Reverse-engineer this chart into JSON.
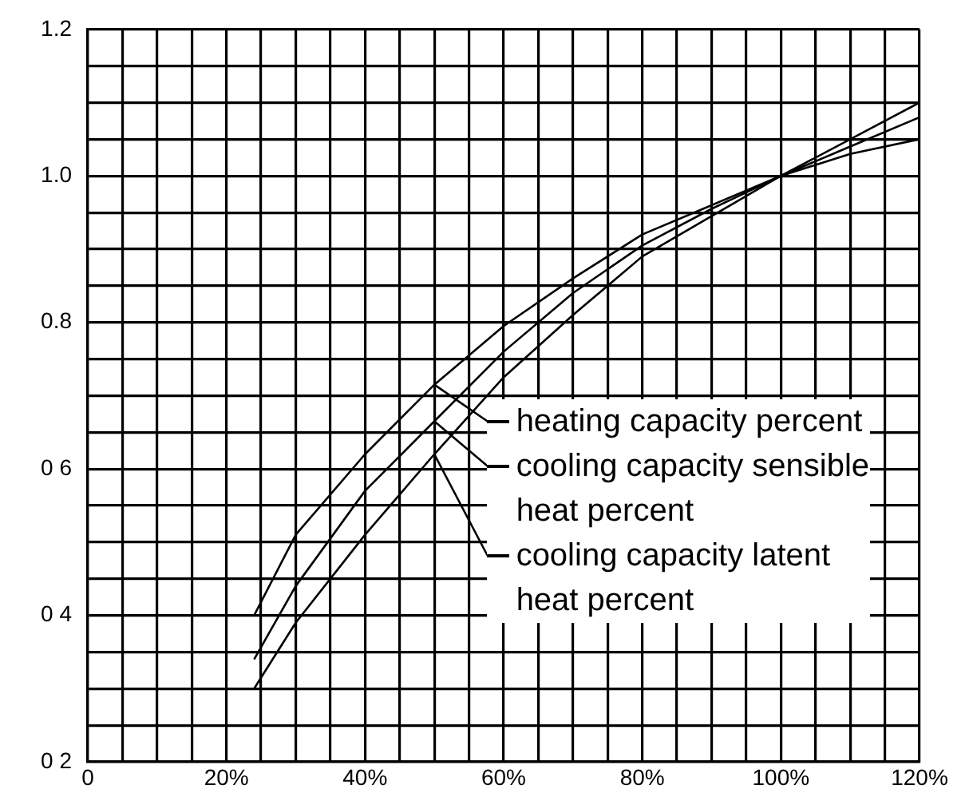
{
  "chart_data": {
    "type": "line",
    "x": [
      24,
      30,
      40,
      50,
      60,
      70,
      80,
      90,
      100,
      110,
      120
    ],
    "series": [
      {
        "name": "heating capacity percent",
        "color": "#000000",
        "values": [
          0.4,
          0.51,
          0.62,
          0.715,
          0.795,
          0.86,
          0.92,
          0.96,
          1.0,
          1.05,
          1.1
        ]
      },
      {
        "name": "cooling capacity sensible heat percent",
        "color": "#000000",
        "values": [
          0.34,
          0.44,
          0.57,
          0.665,
          0.76,
          0.84,
          0.905,
          0.955,
          1.0,
          1.04,
          1.08
        ]
      },
      {
        "name": "cooling capacity latent heat percent",
        "color": "#000000",
        "values": [
          0.3,
          0.39,
          0.51,
          0.62,
          0.725,
          0.81,
          0.89,
          0.945,
          1.0,
          1.03,
          1.05
        ]
      }
    ],
    "xlim": [
      0,
      120
    ],
    "xticks": [
      {
        "value": 0,
        "label": "0"
      },
      {
        "value": 5,
        "label": null
      },
      {
        "value": 10,
        "label": null
      },
      {
        "value": 15,
        "label": null
      },
      {
        "value": 20,
        "label": "20%"
      },
      {
        "value": 25,
        "label": null
      },
      {
        "value": 30,
        "label": null
      },
      {
        "value": 35,
        "label": null
      },
      {
        "value": 40,
        "label": "40%"
      },
      {
        "value": 45,
        "label": null
      },
      {
        "value": 50,
        "label": null
      },
      {
        "value": 55,
        "label": null
      },
      {
        "value": 60,
        "label": "60%"
      },
      {
        "value": 65,
        "label": null
      },
      {
        "value": 70,
        "label": null
      },
      {
        "value": 75,
        "label": null
      },
      {
        "value": 80,
        "label": "80%"
      },
      {
        "value": 85,
        "label": null
      },
      {
        "value": 90,
        "label": null
      },
      {
        "value": 95,
        "label": null
      },
      {
        "value": 100,
        "label": "100%"
      },
      {
        "value": 105,
        "label": null
      },
      {
        "value": 110,
        "label": null
      },
      {
        "value": 115,
        "label": null
      },
      {
        "value": 120,
        "label": "120%"
      }
    ],
    "ylim": [
      0.2,
      1.2
    ],
    "yticks": [
      {
        "value": 0.2,
        "label": "0 2"
      },
      {
        "value": 0.25,
        "label": null
      },
      {
        "value": 0.3,
        "label": null
      },
      {
        "value": 0.35,
        "label": null
      },
      {
        "value": 0.4,
        "label": "0 4"
      },
      {
        "value": 0.45,
        "label": null
      },
      {
        "value": 0.5,
        "label": null
      },
      {
        "value": 0.55,
        "label": null
      },
      {
        "value": 0.6,
        "label": "0 6"
      },
      {
        "value": 0.65,
        "label": null
      },
      {
        "value": 0.7,
        "label": null
      },
      {
        "value": 0.75,
        "label": null
      },
      {
        "value": 0.8,
        "label": "0.8"
      },
      {
        "value": 0.85,
        "label": null
      },
      {
        "value": 0.9,
        "label": null
      },
      {
        "value": 0.95,
        "label": null
      },
      {
        "value": 1.0,
        "label": "1.0"
      },
      {
        "value": 1.05,
        "label": null
      },
      {
        "value": 1.1,
        "label": null
      },
      {
        "value": 1.15,
        "label": null
      },
      {
        "value": 1.2,
        "label": "1.2"
      }
    ],
    "grid": true,
    "legend": "right",
    "marker": "none",
    "line_style": "solid"
  }
}
